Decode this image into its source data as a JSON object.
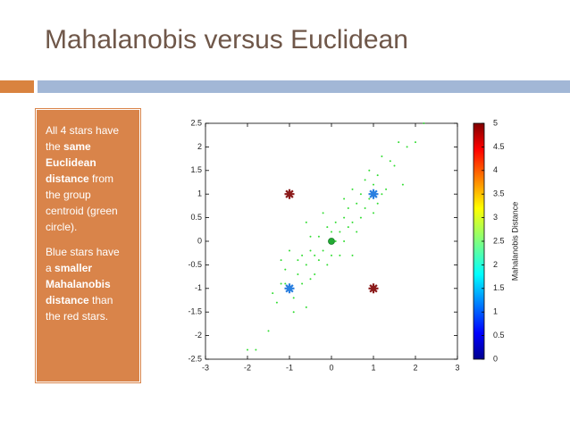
{
  "slide_title": "Mahalanobis versus Euclidean",
  "text_box": {
    "paragraphs": [
      [
        {
          "text": "All 4 stars have the ",
          "bold": false
        },
        {
          "text": "same Euclidean distance",
          "bold": true
        },
        {
          "text": " from the group centroid (green circle).",
          "bold": false
        }
      ],
      [
        {
          "text": "Blue stars have a ",
          "bold": false
        },
        {
          "text": "smaller Mahalanobis distance",
          "bold": true
        },
        {
          "text": " than the red stars.",
          "bold": false
        }
      ]
    ]
  },
  "chart_data": {
    "type": "scatter",
    "xlim": [
      -3,
      3
    ],
    "xticks": [
      -3,
      -2,
      -1,
      0,
      1,
      2,
      3
    ],
    "ylim": [
      -2.5,
      2.5
    ],
    "yticks": [
      -2.5,
      -2,
      -1.5,
      -1,
      -0.5,
      0,
      0.5,
      1,
      1.5,
      2,
      2.5
    ],
    "series": [
      {
        "marker": "dot",
        "color": "#33dd33",
        "x": [
          -2.0,
          -1.8,
          -1.5,
          -1.4,
          -1.3,
          -1.2,
          -1.2,
          -1.1,
          -1.0,
          -0.9,
          -0.9,
          -0.8,
          -0.8,
          -0.7,
          -0.7,
          -0.6,
          -0.6,
          -0.5,
          -0.5,
          -0.5,
          -0.4,
          -0.4,
          -0.3,
          -0.3,
          -0.2,
          -0.2,
          -0.1,
          -0.1,
          0.0,
          0.0,
          0.1,
          0.1,
          0.2,
          0.2,
          0.3,
          0.3,
          0.4,
          0.4,
          0.5,
          0.5,
          0.6,
          0.6,
          0.7,
          0.7,
          0.8,
          0.8,
          0.9,
          0.9,
          1.0,
          1.0,
          1.1,
          1.2,
          1.2,
          1.3,
          1.4,
          1.5,
          1.6,
          1.7,
          1.8,
          2.0,
          2.2,
          0.3,
          -0.6,
          0.5,
          -1.1,
          1.1
        ],
        "y": [
          -2.3,
          -2.3,
          -1.9,
          -1.1,
          -1.3,
          -0.9,
          -0.4,
          -0.6,
          -0.2,
          -1.2,
          -1.5,
          -0.7,
          -0.4,
          -0.9,
          -0.3,
          -0.5,
          -1.4,
          0.1,
          -0.2,
          -0.8,
          -0.3,
          -0.7,
          0.1,
          -0.4,
          0.6,
          -0.2,
          0.3,
          -0.5,
          0.2,
          -0.3,
          0.4,
          0.0,
          0.2,
          -0.3,
          0.9,
          0.5,
          0.7,
          0.3,
          1.1,
          0.4,
          0.8,
          0.2,
          1.0,
          0.5,
          1.3,
          0.7,
          0.9,
          1.5,
          1.2,
          0.6,
          1.4,
          1.8,
          1.0,
          1.1,
          1.7,
          1.6,
          2.1,
          1.2,
          2.0,
          2.1,
          2.5,
          0.0,
          0.4,
          -0.3,
          -0.9,
          0.8
        ]
      },
      {
        "marker": "star",
        "color": "#2a7fe0",
        "x": [
          -1,
          1
        ],
        "y": [
          -1,
          1
        ]
      },
      {
        "marker": "star",
        "color": "#8b1a1a",
        "x": [
          -1,
          1
        ],
        "y": [
          1,
          -1
        ]
      },
      {
        "marker": "circle",
        "color": "#22aa33",
        "x": [
          0
        ],
        "y": [
          0
        ]
      }
    ],
    "colorbar": {
      "label": "Mahalanobis Distance",
      "colormap": "jet",
      "lim": [
        0,
        5
      ],
      "ticks": [
        0,
        0.5,
        1,
        1.5,
        2,
        2.5,
        3,
        3.5,
        4,
        4.5,
        5
      ]
    }
  }
}
